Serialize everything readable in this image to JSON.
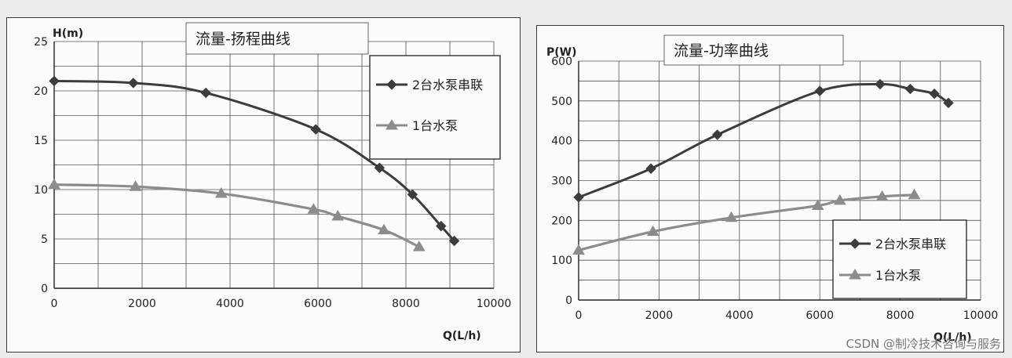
{
  "watermark": "CSDN @制冷技术咨询与服务",
  "colors": {
    "series_2pump": "#3c3c3c",
    "series_1pump": "#8c8c8c",
    "grid": "#555555",
    "axis": "#222222"
  },
  "chart_data": [
    {
      "type": "line",
      "title": "流量-扬程曲线",
      "xlabel": "Q(L/h)",
      "ylabel": "H(m)",
      "xlim": [
        0,
        10000
      ],
      "ylim": [
        0,
        25
      ],
      "x_ticks": [
        "0",
        "2000",
        "4000",
        "6000",
        "8000",
        "10000"
      ],
      "y_ticks": [
        "0",
        "5",
        "10",
        "15",
        "20",
        "25"
      ],
      "grid": true,
      "legend": "top-right",
      "series": [
        {
          "name": "2台水泵串联",
          "marker": "diamond",
          "color": "#3c3c3c",
          "points": [
            [
              0,
              21.0
            ],
            [
              1800,
              20.8
            ],
            [
              3450,
              19.8
            ],
            [
              5950,
              16.1
            ],
            [
              7400,
              12.2
            ],
            [
              8150,
              9.5
            ],
            [
              8800,
              6.3
            ],
            [
              9100,
              4.8
            ]
          ]
        },
        {
          "name": "1台水泵",
          "marker": "triangle",
          "color": "#8c8c8c",
          "points": [
            [
              0,
              10.5
            ],
            [
              1850,
              10.3
            ],
            [
              3800,
              9.6
            ],
            [
              5900,
              8.0
            ],
            [
              6450,
              7.3
            ],
            [
              7500,
              5.9
            ],
            [
              8300,
              4.2
            ]
          ]
        }
      ]
    },
    {
      "type": "line",
      "title": "流量-功率曲线",
      "xlabel": "Q(L/h)",
      "ylabel": "P(W)",
      "xlim": [
        0,
        10000
      ],
      "ylim": [
        0,
        600
      ],
      "x_ticks": [
        "0",
        "2000",
        "4000",
        "6000",
        "8000",
        "10000"
      ],
      "y_ticks": [
        "0",
        "100",
        "200",
        "300",
        "400",
        "500",
        "600"
      ],
      "grid": true,
      "legend": "bottom-right",
      "series": [
        {
          "name": "2台水泵串联",
          "marker": "diamond",
          "color": "#3c3c3c",
          "points": [
            [
              0,
              258
            ],
            [
              1800,
              330
            ],
            [
              3450,
              415
            ],
            [
              6000,
              525
            ],
            [
              7500,
              542
            ],
            [
              8250,
              530
            ],
            [
              8850,
              518
            ],
            [
              9200,
              495
            ]
          ]
        },
        {
          "name": "1台水泵",
          "marker": "triangle",
          "color": "#8c8c8c",
          "points": [
            [
              0,
              125
            ],
            [
              1850,
              172
            ],
            [
              3800,
              207
            ],
            [
              5950,
              237
            ],
            [
              6500,
              250
            ],
            [
              7550,
              260
            ],
            [
              8350,
              264
            ]
          ]
        }
      ]
    }
  ]
}
